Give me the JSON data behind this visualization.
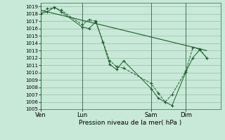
{
  "xlabel": "Pression niveau de la mer( hPa )",
  "bg_color": "#c8e8d8",
  "grid_color": "#99bbaa",
  "line_dark": "#1a5c28",
  "ylim": [
    1005,
    1019.5
  ],
  "yticks": [
    1005,
    1006,
    1007,
    1008,
    1009,
    1010,
    1011,
    1012,
    1013,
    1014,
    1015,
    1016,
    1017,
    1018,
    1019
  ],
  "xtick_labels": [
    "Ven",
    "Lun",
    "Sam",
    "Dim"
  ],
  "xtick_positions": [
    0,
    36,
    96,
    126
  ],
  "xlim": [
    0,
    156
  ],
  "vline_positions": [
    0,
    36,
    96,
    126
  ],
  "series1_x": [
    0,
    6,
    12,
    18,
    36,
    42,
    48,
    54,
    60,
    66,
    72,
    96,
    102,
    108,
    114,
    126,
    132,
    138,
    144
  ],
  "series1_y": [
    1018.0,
    1018.7,
    1018.8,
    1018.5,
    1016.5,
    1017.2,
    1017.0,
    1014.2,
    1011.6,
    1010.8,
    1010.6,
    1008.5,
    1007.2,
    1006.0,
    1007.0,
    1010.2,
    1013.4,
    1013.2,
    1012.0
  ],
  "series2_x": [
    0,
    6,
    12,
    18,
    36,
    42,
    48,
    54,
    60,
    66,
    72,
    96,
    102,
    108,
    114,
    126,
    132,
    138,
    144
  ],
  "series2_y": [
    1018.0,
    1018.3,
    1018.9,
    1018.3,
    1016.2,
    1016.0,
    1016.9,
    1014.2,
    1011.1,
    1010.4,
    1011.6,
    1007.8,
    1006.5,
    1006.0,
    1005.5,
    1010.1,
    1012.0,
    1013.1,
    1012.0
  ],
  "series3_x": [
    0,
    144
  ],
  "series3_y": [
    1018.5,
    1013.0
  ]
}
